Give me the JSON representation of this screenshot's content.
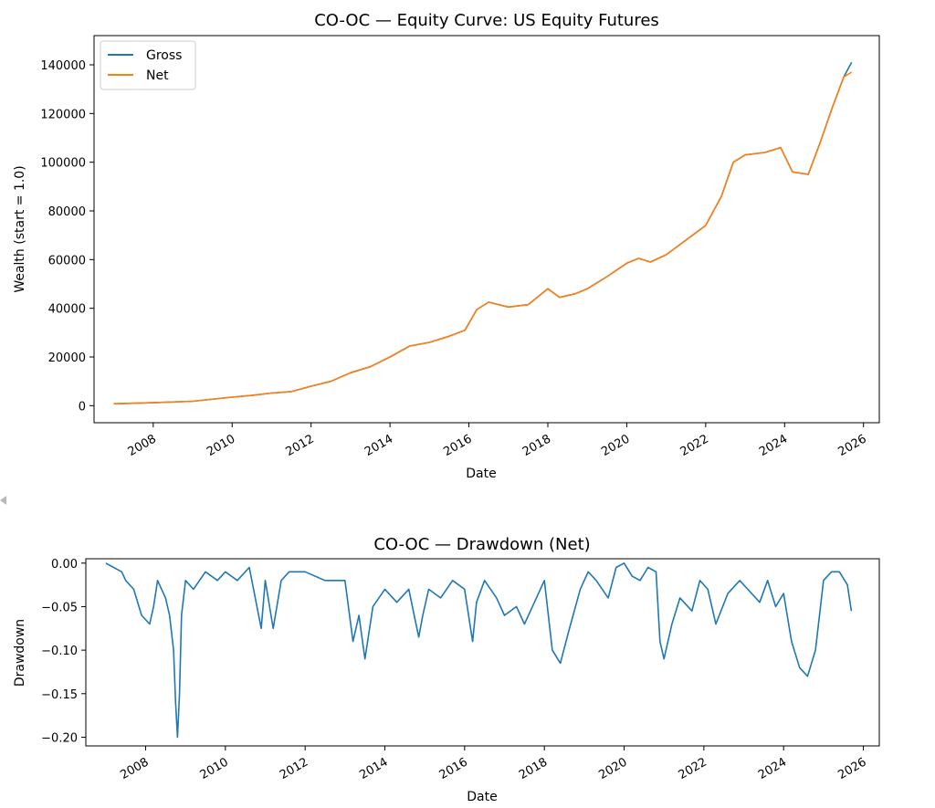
{
  "chart_data": [
    {
      "type": "line",
      "title": "CO-OC — Equity Curve: US Equity Futures",
      "xlabel": "Date",
      "ylabel": "Wealth (start = 1.0)",
      "xlim": [
        2006.5,
        2026.4
      ],
      "ylim": [
        -7000,
        152000
      ],
      "x_ticks": [
        "2008",
        "2010",
        "2012",
        "2014",
        "2016",
        "2018",
        "2020",
        "2022",
        "2024",
        "2026"
      ],
      "y_ticks": [
        "0",
        "20000",
        "40000",
        "60000",
        "80000",
        "100000",
        "120000",
        "140000"
      ],
      "legend": "upper-left",
      "series": [
        {
          "name": "Gross",
          "color": "#1f77b4",
          "x": [
            2007.0,
            2008.0,
            2009.0,
            2010.0,
            2010.5,
            2011.0,
            2011.5,
            2012.0,
            2012.5,
            2013.0,
            2013.5,
            2014.0,
            2014.5,
            2015.0,
            2015.5,
            2015.9,
            2016.2,
            2016.5,
            2017.0,
            2017.5,
            2018.0,
            2018.3,
            2018.7,
            2019.0,
            2019.5,
            2020.0,
            2020.3,
            2020.6,
            2021.0,
            2021.5,
            2022.0,
            2022.4,
            2022.7,
            2023.0,
            2023.5,
            2023.9,
            2024.2,
            2024.6,
            2024.9,
            2025.2,
            2025.5,
            2025.7
          ],
          "values": [
            800,
            1200,
            1800,
            3500,
            4200,
            5200,
            5800,
            8000,
            10000,
            13500,
            16000,
            20000,
            24500,
            26000,
            28500,
            31000,
            39500,
            42500,
            40500,
            41500,
            48000,
            44500,
            46000,
            48000,
            53000,
            58500,
            60500,
            59000,
            62000,
            68000,
            74000,
            86000,
            100000,
            103000,
            104000,
            106000,
            96000,
            95000,
            108000,
            122000,
            135000,
            141000
          ]
        },
        {
          "name": "Net",
          "color": "#ff7f0e",
          "x": [
            2007.0,
            2008.0,
            2009.0,
            2010.0,
            2010.5,
            2011.0,
            2011.5,
            2012.0,
            2012.5,
            2013.0,
            2013.5,
            2014.0,
            2014.5,
            2015.0,
            2015.5,
            2015.9,
            2016.2,
            2016.5,
            2017.0,
            2017.5,
            2018.0,
            2018.3,
            2018.7,
            2019.0,
            2019.5,
            2020.0,
            2020.3,
            2020.6,
            2021.0,
            2021.5,
            2022.0,
            2022.4,
            2022.7,
            2023.0,
            2023.5,
            2023.9,
            2024.2,
            2024.6,
            2024.9,
            2025.2,
            2025.5,
            2025.7
          ],
          "values": [
            800,
            1200,
            1800,
            3500,
            4200,
            5200,
            5800,
            8000,
            10000,
            13500,
            16000,
            20000,
            24500,
            26000,
            28500,
            31000,
            39500,
            42500,
            40500,
            41500,
            48000,
            44500,
            46000,
            48000,
            53000,
            58500,
            60500,
            59000,
            62000,
            68000,
            74000,
            86000,
            100000,
            103000,
            104000,
            106000,
            96000,
            95000,
            108000,
            122000,
            135000,
            137000
          ]
        }
      ]
    },
    {
      "type": "line",
      "title": "CO-OC — Drawdown (Net)",
      "xlabel": "Date",
      "ylabel": "Drawdown",
      "xlim": [
        2006.5,
        2026.4
      ],
      "ylim": [
        -0.21,
        0.005
      ],
      "x_ticks": [
        "2008",
        "2010",
        "2012",
        "2014",
        "2016",
        "2018",
        "2020",
        "2022",
        "2024",
        "2026"
      ],
      "y_ticks": [
        "0.00",
        "−0.05",
        "−0.10",
        "−0.15",
        "−0.20"
      ],
      "series": [
        {
          "name": "Drawdown",
          "color": "#1f77b4",
          "x": [
            2007.0,
            2007.4,
            2007.5,
            2007.7,
            2007.9,
            2008.1,
            2008.2,
            2008.3,
            2008.5,
            2008.6,
            2008.7,
            2008.75,
            2008.8,
            2008.85,
            2008.9,
            2009.0,
            2009.2,
            2009.5,
            2009.8,
            2010.0,
            2010.3,
            2010.6,
            2010.9,
            2011.0,
            2011.2,
            2011.4,
            2011.6,
            2012.0,
            2012.5,
            2013.0,
            2013.2,
            2013.35,
            2013.5,
            2013.7,
            2014.0,
            2014.3,
            2014.6,
            2014.85,
            2014.95,
            2015.1,
            2015.4,
            2015.7,
            2016.0,
            2016.2,
            2016.3,
            2016.5,
            2016.8,
            2017.0,
            2017.3,
            2017.5,
            2017.7,
            2017.9,
            2018.0,
            2018.2,
            2018.4,
            2018.6,
            2018.9,
            2019.1,
            2019.3,
            2019.6,
            2019.8,
            2020.0,
            2020.2,
            2020.4,
            2020.6,
            2020.8,
            2020.9,
            2021.0,
            2021.2,
            2021.4,
            2021.7,
            2021.9,
            2022.1,
            2022.3,
            2022.6,
            2022.9,
            2023.1,
            2023.4,
            2023.6,
            2023.8,
            2024.0,
            2024.2,
            2024.4,
            2024.6,
            2024.8,
            2025.0,
            2025.2,
            2025.4,
            2025.6,
            2025.7
          ],
          "values": [
            0.0,
            -0.01,
            -0.02,
            -0.03,
            -0.06,
            -0.07,
            -0.05,
            -0.02,
            -0.04,
            -0.06,
            -0.1,
            -0.16,
            -0.2,
            -0.15,
            -0.06,
            -0.02,
            -0.03,
            -0.01,
            -0.02,
            -0.01,
            -0.02,
            -0.005,
            -0.075,
            -0.02,
            -0.075,
            -0.02,
            -0.01,
            -0.01,
            -0.02,
            -0.02,
            -0.09,
            -0.06,
            -0.11,
            -0.05,
            -0.03,
            -0.045,
            -0.03,
            -0.085,
            -0.06,
            -0.03,
            -0.04,
            -0.02,
            -0.03,
            -0.09,
            -0.045,
            -0.02,
            -0.04,
            -0.06,
            -0.05,
            -0.07,
            -0.05,
            -0.03,
            -0.02,
            -0.1,
            -0.115,
            -0.08,
            -0.03,
            -0.01,
            -0.02,
            -0.04,
            -0.005,
            0.0,
            -0.015,
            -0.02,
            -0.005,
            -0.01,
            -0.09,
            -0.11,
            -0.07,
            -0.04,
            -0.055,
            -0.02,
            -0.03,
            -0.07,
            -0.035,
            -0.02,
            -0.03,
            -0.045,
            -0.02,
            -0.05,
            -0.035,
            -0.09,
            -0.12,
            -0.13,
            -0.1,
            -0.02,
            -0.01,
            -0.01,
            -0.025,
            -0.055
          ]
        }
      ]
    }
  ]
}
